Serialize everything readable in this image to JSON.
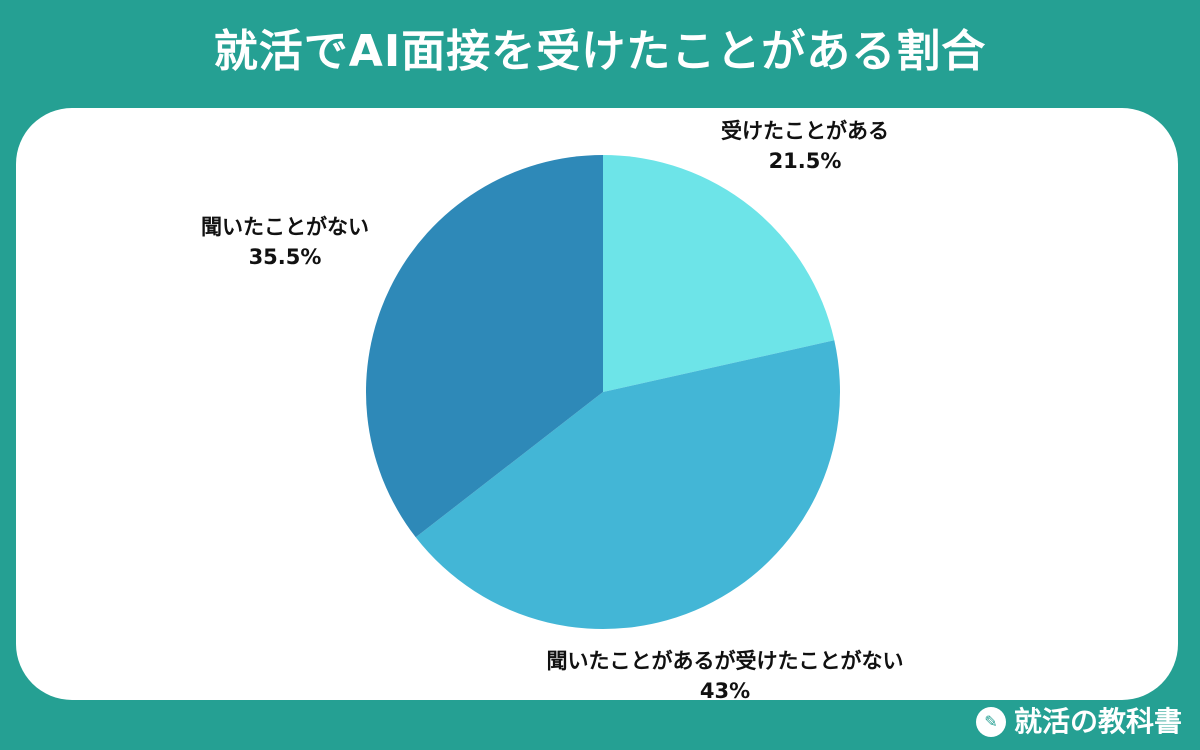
{
  "title": "就活でAI面接を受けたことがある割合",
  "brand": {
    "name": "就活の教科書",
    "icon": "book-logo-icon"
  },
  "chart_data": {
    "type": "pie",
    "slices": [
      {
        "label": "受けたことがある",
        "value": 21.5,
        "value_label": "21.5%",
        "color": "#6de4e8"
      },
      {
        "label": "聞いたことがあるが受けたことがない",
        "value": 43,
        "value_label": "43%",
        "color": "#43b6d6"
      },
      {
        "label": "聞いたことがない",
        "value": 35.5,
        "value_label": "35.5%",
        "color": "#2e89b8"
      }
    ],
    "start_angle_deg": 0,
    "direction": "clockwise"
  }
}
